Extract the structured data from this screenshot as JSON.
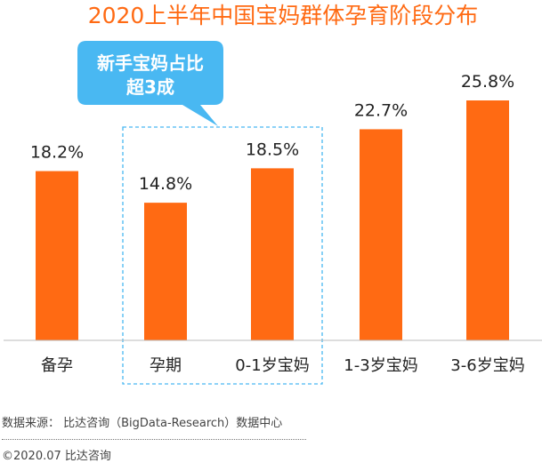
{
  "chart_data": {
    "type": "bar",
    "title": "2020上半年中国宝妈群体孕育阶段分布",
    "categories": [
      "备孕",
      "孕期",
      "0-1岁宝妈",
      "1-3岁宝妈",
      "3-6岁宝妈"
    ],
    "values": [
      18.2,
      14.8,
      18.5,
      22.7,
      25.8
    ],
    "value_labels": [
      "18.2%",
      "14.8%",
      "18.5%",
      "22.7%",
      "25.8%"
    ],
    "unit": "%",
    "xlabel": "",
    "ylabel": "",
    "ylim": [
      0,
      25.8
    ],
    "grid": false,
    "legend": "none",
    "bar_color": "#ff6a13",
    "title_color": "#ff6a13",
    "annotation": {
      "text_line1": "新手宝妈占比",
      "text_line2": "超3成",
      "color": "#49b8f2",
      "highlight_categories": [
        "孕期",
        "0-1岁宝妈"
      ]
    }
  },
  "footer": {
    "source": "数据来源：  比达咨询（BigData-Research）数据中心",
    "copyright": "©2020.07  比达咨询"
  }
}
